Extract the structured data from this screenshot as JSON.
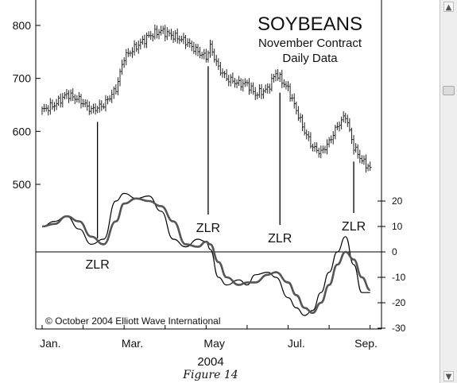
{
  "chart_data": {
    "type": "line",
    "title": "SOYBEANS",
    "subtitle_lines": [
      "November Contract",
      "Daily Data"
    ],
    "xlabel": "2004",
    "x_ticks": [
      "Jan.",
      "Mar.",
      "May",
      "Jul.",
      "Sep."
    ],
    "copyright": "© October 2004 Elliott Wave International",
    "price_axis": {
      "ticks": [
        "800",
        "700",
        "600",
        "500"
      ],
      "ylim": [
        440,
        850
      ]
    },
    "oscillator_axis": {
      "ticks": [
        "20",
        "10",
        "0",
        "-10",
        "-20",
        "-30"
      ],
      "ylim": [
        -30,
        22
      ]
    },
    "price_series": {
      "style": "daily bars",
      "x_month": [
        0.0,
        0.3,
        0.6,
        0.9,
        1.2,
        1.5,
        1.8,
        2.0,
        2.3,
        2.6,
        2.9,
        3.2,
        3.5,
        3.8,
        4.0,
        4.1,
        4.3,
        4.5,
        4.8,
        5.0,
        5.2,
        5.5,
        5.7,
        6.0,
        6.2,
        6.4,
        6.6,
        6.8,
        7.0,
        7.2,
        7.4,
        7.6,
        7.8,
        8.0
      ],
      "close": [
        640,
        650,
        670,
        660,
        640,
        650,
        680,
        740,
        760,
        780,
        790,
        780,
        770,
        750,
        740,
        760,
        720,
        700,
        690,
        690,
        670,
        680,
        710,
        680,
        640,
        600,
        570,
        560,
        580,
        610,
        630,
        570,
        545,
        530
      ]
    },
    "oscillator_series": [
      {
        "style": "thin",
        "x_month": [
          0.0,
          0.3,
          0.6,
          0.9,
          1.2,
          1.5,
          1.8,
          2.0,
          2.3,
          2.6,
          2.9,
          3.2,
          3.5,
          3.8,
          4.0,
          4.1,
          4.3,
          4.5,
          4.8,
          5.0,
          5.2,
          5.5,
          5.7,
          6.0,
          6.2,
          6.4,
          6.6,
          6.8,
          7.0,
          7.2,
          7.4,
          7.6,
          7.8,
          8.0
        ],
        "values": [
          10,
          12,
          14,
          9,
          3,
          5,
          20,
          23,
          21,
          22,
          16,
          5,
          2,
          5,
          4,
          1,
          -10,
          -13,
          -11,
          -13,
          -9,
          -8,
          -10,
          -18,
          -22,
          -25,
          -23,
          -16,
          -8,
          0,
          6,
          -5,
          -16,
          -16
        ]
      },
      {
        "style": "thick",
        "x_month": [
          0.0,
          0.3,
          0.6,
          0.9,
          1.2,
          1.5,
          1.8,
          2.0,
          2.3,
          2.6,
          2.9,
          3.2,
          3.5,
          3.8,
          4.0,
          4.1,
          4.3,
          4.5,
          4.8,
          5.0,
          5.2,
          5.5,
          5.7,
          6.0,
          6.2,
          6.4,
          6.6,
          6.8,
          7.0,
          7.2,
          7.4,
          7.6,
          7.8,
          8.0
        ],
        "values": [
          10,
          11,
          14,
          12,
          6,
          3,
          12,
          19,
          21,
          20,
          18,
          12,
          3,
          2,
          4,
          3,
          -4,
          -10,
          -13,
          -12,
          -12,
          -9,
          -8,
          -12,
          -17,
          -22,
          -24,
          -20,
          -13,
          -5,
          0,
          -3,
          -10,
          -15
        ]
      }
    ],
    "annotations": [
      {
        "text": "ZLR",
        "x_month": 1.35,
        "position": "below"
      },
      {
        "text": "ZLR",
        "x_month": 4.05,
        "position": "above"
      },
      {
        "text": "ZLR",
        "x_month": 5.8,
        "position": "above"
      },
      {
        "text": "ZLR",
        "x_month": 7.6,
        "position": "above"
      }
    ],
    "zero_line": 0,
    "legend": "none",
    "grid": false
  },
  "figure": {
    "caption": "Figure 14"
  },
  "scrollbar": {
    "up_icon": "chevron-up-icon",
    "down_icon": "chevron-down-icon"
  }
}
